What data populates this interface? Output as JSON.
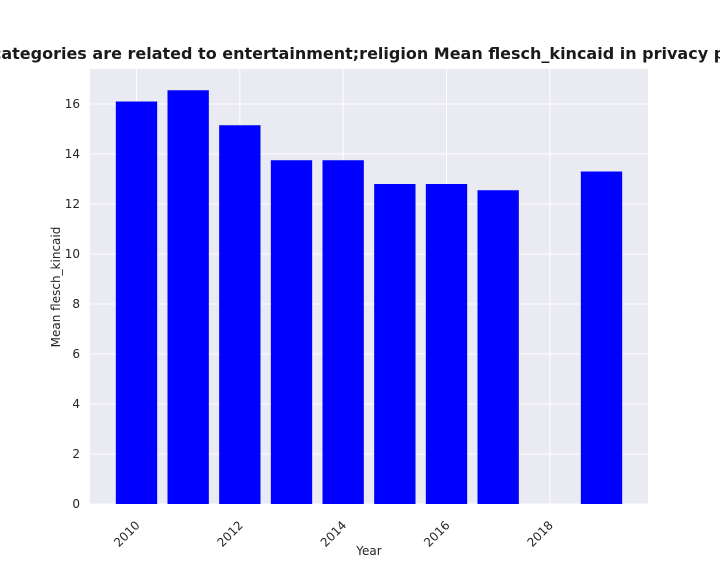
{
  "chart_data": {
    "type": "bar",
    "title": "When categories are related to entertainment;religion Mean flesch_kincaid in privacy policies by year",
    "xlabel": "Year",
    "ylabel": "Mean flesch_kincaid",
    "x": [
      2010,
      2011,
      2012,
      2013,
      2014,
      2015,
      2016,
      2017,
      2019
    ],
    "values": [
      16.1,
      16.55,
      15.15,
      13.75,
      13.75,
      12.8,
      12.8,
      12.55,
      13.3
    ],
    "xlim": [
      2009.1,
      2019.9
    ],
    "ylim": [
      0,
      17.4
    ],
    "xticks": [
      2010,
      2012,
      2014,
      2016,
      2018
    ],
    "yticks": [
      0,
      2,
      4,
      6,
      8,
      10,
      12,
      14,
      16
    ],
    "grid": true,
    "colors": {
      "bar": "#0000ff",
      "plot_bg": "#eaeaf2",
      "grid": "#ffffff"
    }
  }
}
